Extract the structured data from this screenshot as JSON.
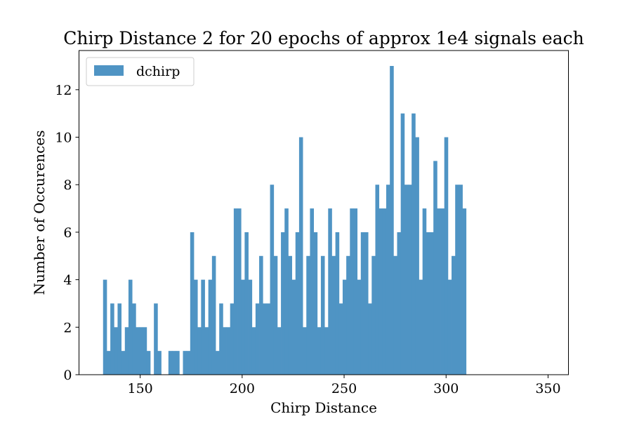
{
  "chart_data": {
    "type": "bar",
    "title": "Chirp Distance 2 for 20 epochs of approx 1e4 signals each",
    "xlabel": "Chirp Distance",
    "ylabel": "Number of Occurences",
    "xlim": [
      120,
      360
    ],
    "ylim": [
      0,
      13.65
    ],
    "xticks": [
      150,
      200,
      250,
      300,
      350
    ],
    "yticks": [
      0,
      2,
      4,
      6,
      8,
      10,
      12
    ],
    "bin_start": 131.8,
    "bin_width": 1.78,
    "series": [
      {
        "name": "dchirp",
        "color": "#4f94c4",
        "values": [
          4,
          1,
          3,
          2,
          3,
          1,
          2,
          4,
          3,
          2,
          2,
          2,
          1,
          0,
          3,
          1,
          0,
          0,
          1,
          1,
          1,
          0,
          1,
          1,
          6,
          4,
          2,
          4,
          2,
          4,
          5,
          1,
          3,
          2,
          2,
          3,
          7,
          7,
          4,
          6,
          4,
          2,
          3,
          5,
          3,
          3,
          8,
          5,
          2,
          6,
          7,
          5,
          4,
          6,
          10,
          2,
          5,
          7,
          6,
          2,
          5,
          2,
          7,
          5,
          6,
          3,
          4,
          5,
          7,
          7,
          4,
          6,
          6,
          3,
          5,
          8,
          7,
          7,
          8,
          13,
          5,
          6,
          11,
          8,
          8,
          11,
          10,
          4,
          7,
          6,
          6,
          9,
          7,
          7,
          10,
          4,
          5,
          8,
          8,
          7
        ]
      }
    ],
    "legend_position": "upper left",
    "grid": false
  }
}
